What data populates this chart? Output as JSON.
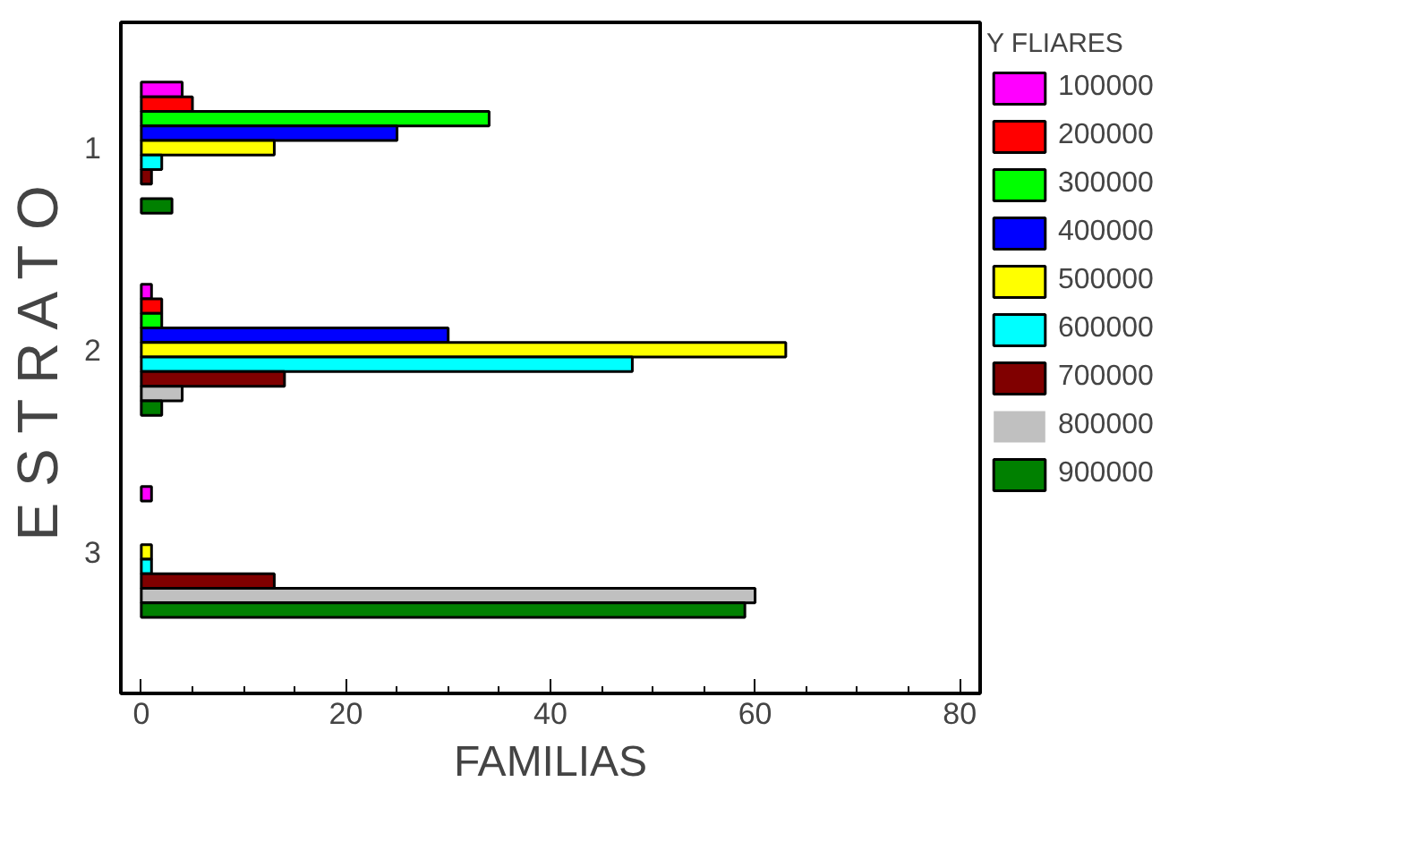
{
  "chart_data": {
    "type": "bar",
    "orientation": "horizontal",
    "xlabel": "FAMILIAS",
    "ylabel": "E S T R A T O",
    "legend_title": "Y FLIARES",
    "legend": "right",
    "grid": false,
    "categories": [
      "1",
      "2",
      "3"
    ],
    "xlim": [
      -2,
      82
    ],
    "xticks": [
      0,
      20,
      40,
      60,
      80
    ],
    "series": [
      {
        "name": "100000",
        "color": "#ff00ff",
        "values": [
          4,
          1,
          1
        ]
      },
      {
        "name": "200000",
        "color": "#ff0000",
        "values": [
          5,
          2,
          0
        ]
      },
      {
        "name": "300000",
        "color": "#00ff00",
        "values": [
          34,
          2,
          0
        ]
      },
      {
        "name": "400000",
        "color": "#0000ff",
        "values": [
          25,
          30,
          0
        ]
      },
      {
        "name": "500000",
        "color": "#ffff00",
        "values": [
          13,
          63,
          1
        ]
      },
      {
        "name": "600000",
        "color": "#00ffff",
        "values": [
          2,
          48,
          1
        ]
      },
      {
        "name": "700000",
        "color": "#800000",
        "values": [
          1,
          14,
          13
        ]
      },
      {
        "name": "800000",
        "color": "#c0c0c0",
        "values": [
          0,
          4,
          60
        ]
      },
      {
        "name": "900000",
        "color": "#008000",
        "values": [
          3,
          2,
          59
        ]
      }
    ]
  }
}
